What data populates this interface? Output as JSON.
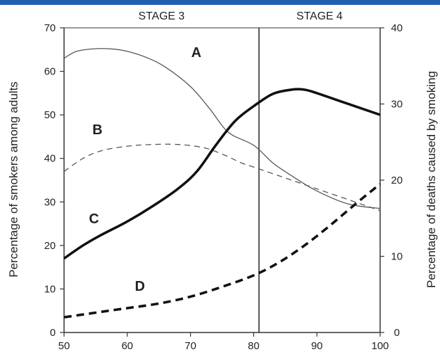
{
  "chart_data": {
    "type": "line",
    "title": "",
    "xlabel": "",
    "ylabel": "Percentage of smokers among adults",
    "ylabel_right": "Percentage of deaths caused by smoking",
    "xlim": [
      50,
      100
    ],
    "ylim": [
      0,
      70
    ],
    "ylim_right": [
      0,
      40
    ],
    "x_ticks": [
      "50",
      "60",
      "70",
      "80",
      "90",
      "100"
    ],
    "y_ticks_left": [
      "0",
      "10",
      "20",
      "30",
      "40",
      "50",
      "60",
      "70"
    ],
    "y_ticks_right": [
      "0",
      "10",
      "20",
      "30",
      "40"
    ],
    "stages": [
      {
        "label": "STAGE 3",
        "from": 50,
        "to": 80
      },
      {
        "label": "STAGE 4",
        "from": 80,
        "to": 100
      }
    ],
    "grid": false,
    "legend": "none (curves labelled directly)",
    "series": [
      {
        "name": "A",
        "axis": "left",
        "style": "thin-solid",
        "x": [
          50,
          52,
          55,
          58,
          60,
          63,
          66,
          70,
          73,
          76,
          80,
          83,
          86,
          90,
          95,
          100
        ],
        "values": [
          63,
          64.6,
          65.2,
          65.1,
          64.6,
          63.2,
          61,
          56.5,
          51.5,
          46,
          43,
          39,
          36,
          32.5,
          29.5,
          28.5
        ]
      },
      {
        "name": "B",
        "axis": "left",
        "style": "thin-dashed",
        "x": [
          50,
          53,
          56,
          60,
          64,
          68,
          72,
          75,
          78,
          80,
          84,
          88,
          92,
          96,
          100
        ],
        "values": [
          37,
          40,
          41.8,
          42.8,
          43.2,
          43.2,
          42.5,
          41,
          39,
          38,
          36,
          34,
          32,
          30,
          28
        ]
      },
      {
        "name": "C",
        "axis": "left",
        "style": "thick-solid",
        "x": [
          50,
          53,
          56,
          60,
          64,
          68,
          71,
          74,
          77,
          80,
          83,
          86,
          88,
          90,
          94,
          100
        ],
        "values": [
          17,
          20,
          22.5,
          25.5,
          29,
          33,
          37,
          43,
          48.5,
          52,
          54.8,
          55.8,
          55.8,
          55,
          53,
          50
        ]
      },
      {
        "name": "D",
        "axis": "right",
        "style": "thick-dashed",
        "x": [
          50,
          55,
          60,
          65,
          70,
          75,
          80,
          84,
          88,
          92,
          96,
          100
        ],
        "values": [
          2,
          2.6,
          3.2,
          3.8,
          4.7,
          6,
          7.5,
          9.2,
          11.4,
          14,
          16.8,
          19.5
        ]
      }
    ]
  }
}
